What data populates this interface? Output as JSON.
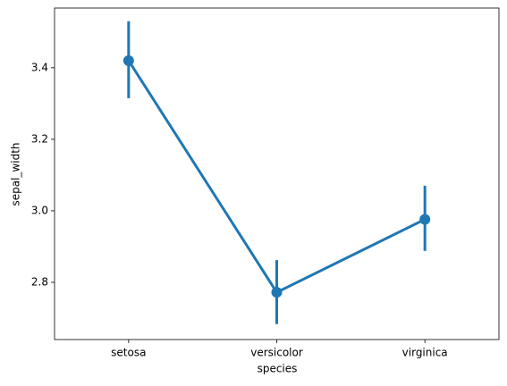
{
  "chart_data": {
    "type": "pointplot",
    "x_label": "species",
    "y_label": "sepal_width",
    "categories": [
      "setosa",
      "versicolor",
      "virginica"
    ],
    "values": [
      3.42,
      2.772,
      2.976
    ],
    "error_low": [
      3.315,
      2.683,
      2.888
    ],
    "error_high": [
      3.53,
      2.862,
      3.07
    ],
    "color": "#1f77b4",
    "ylim": [
      2.64,
      3.567
    ],
    "yticks": [
      2.8,
      {
        "value": 3,
        "label": "3.0"
      },
      3.2,
      3.4
    ],
    "grid": false
  }
}
